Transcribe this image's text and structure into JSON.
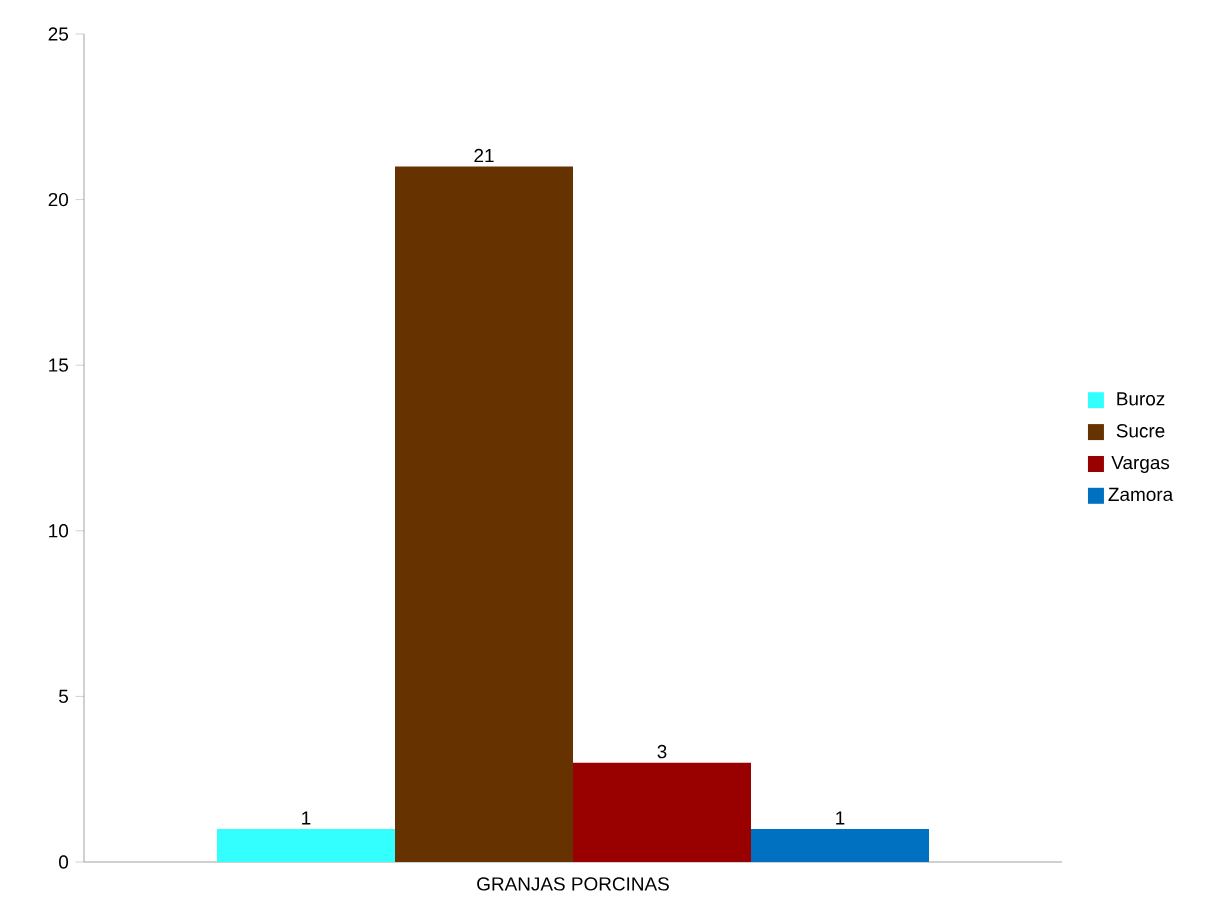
{
  "chart_data": {
    "type": "bar",
    "categories": [
      "GRANJAS PORCINAS"
    ],
    "series": [
      {
        "name": "Buroz",
        "color": "#33ffff",
        "values": [
          1
        ]
      },
      {
        "name": "Sucre",
        "color": "#663300",
        "values": [
          21
        ]
      },
      {
        "name": "Vargas",
        "color": "#990000",
        "values": [
          3
        ]
      },
      {
        "name": "Zamora",
        "color": "#0070c0",
        "values": [
          1
        ]
      }
    ],
    "ylim": [
      0,
      25
    ],
    "yticks": [
      0,
      5,
      10,
      15,
      20,
      25
    ],
    "data_labels": true,
    "legend": "right"
  }
}
